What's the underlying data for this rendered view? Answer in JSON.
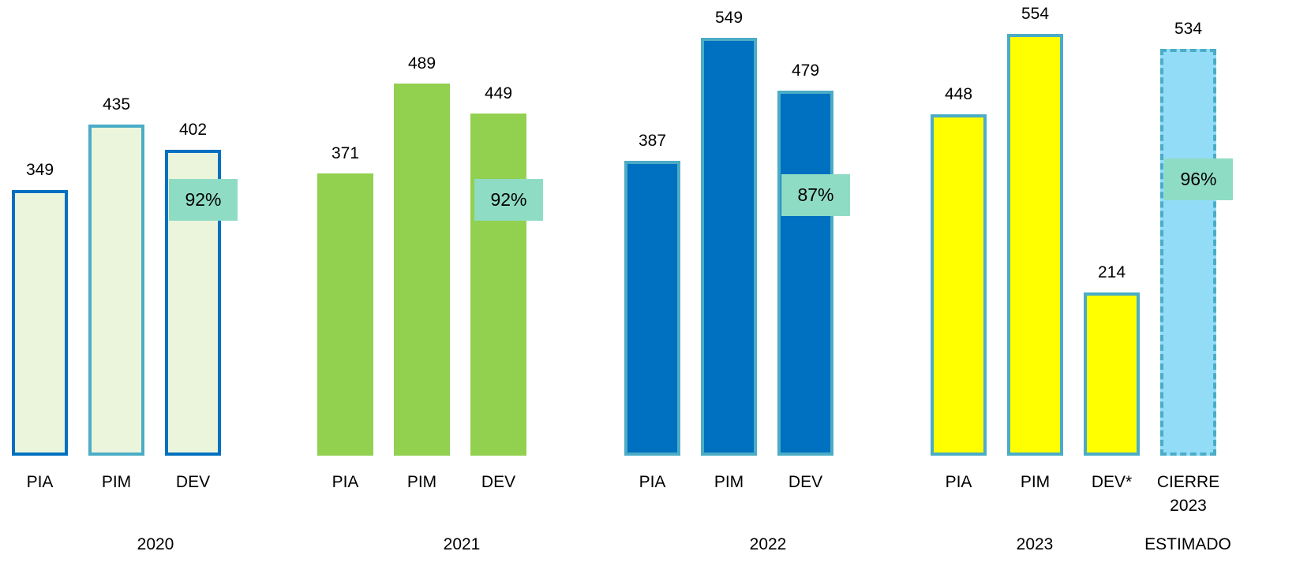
{
  "chart_data": {
    "type": "bar",
    "groups": [
      {
        "name": "2020",
        "categories": [
          "PIA",
          "PIM",
          "DEV"
        ],
        "values": [
          349,
          435,
          402
        ],
        "color": "#ebf5dc",
        "edge_colors": [
          "#0070c0",
          "#4bacc6",
          "#0070c0"
        ],
        "rate": 92,
        "rate_label": "92%"
      },
      {
        "name": "2021",
        "categories": [
          "PIA",
          "PIM",
          "DEV"
        ],
        "values": [
          371,
          489,
          449
        ],
        "color": "#92d050",
        "rate": 92,
        "rate_label": "92%"
      },
      {
        "name": "2022",
        "categories": [
          "PIA",
          "PIM",
          "DEV"
        ],
        "values": [
          387,
          549,
          479
        ],
        "color": "#0070c0",
        "edge_colors": [
          "#4bacc6",
          "#4bacc6",
          "#4bacc6"
        ],
        "rate": 87,
        "rate_label": "87%"
      },
      {
        "name": "2023",
        "categories": [
          "PIA",
          "PIM",
          "DEV*"
        ],
        "values": [
          448,
          554,
          214
        ],
        "color": "#ffff00",
        "edge_colors": [
          "#4bacc6",
          "#4bacc6",
          "#4bacc6"
        ]
      },
      {
        "name": "ESTIMADO",
        "categories": [
          "CIERRE 2023"
        ],
        "values": [
          534
        ],
        "color": "#92dcf8",
        "edge_colors": [
          "#4bacc6"
        ],
        "dashed": true,
        "rate": 96,
        "rate_label": "96%"
      }
    ],
    "rate_color": "#8fdcc4"
  }
}
